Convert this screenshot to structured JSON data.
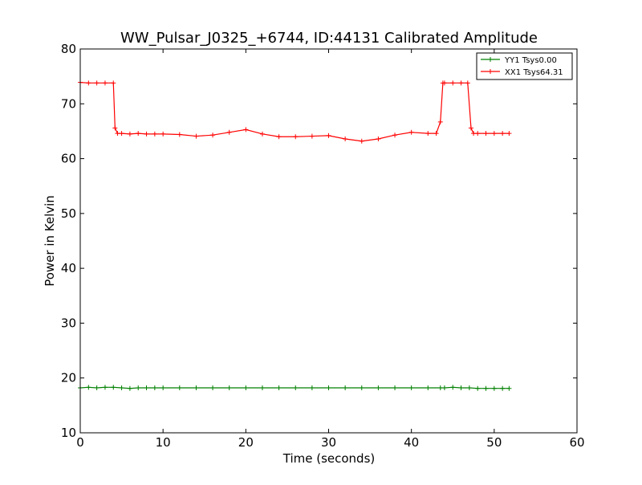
{
  "chart_data": {
    "type": "line",
    "title": "WW_Pulsar_J0325_+6744, ID:44131 Calibrated Amplitude",
    "xlabel": "Time (seconds)",
    "ylabel": "Power in Kelvin",
    "xlim": [
      0,
      60
    ],
    "ylim": [
      10,
      80
    ],
    "xticks": [
      0,
      10,
      20,
      30,
      40,
      50,
      60
    ],
    "yticks": [
      10,
      20,
      30,
      40,
      50,
      60,
      70,
      80
    ],
    "grid": false,
    "legend_position": "top-right",
    "marker": "+",
    "series": [
      {
        "name": "YY1 Tsys0.00",
        "color": "#008000",
        "x": [
          0.0,
          1.0,
          2.0,
          3.0,
          4.0,
          5.0,
          6.0,
          7.0,
          8.0,
          9.0,
          10.0,
          12.0,
          14.0,
          16.0,
          18.0,
          20.0,
          22.0,
          24.0,
          26.0,
          28.0,
          30.0,
          32.0,
          34.0,
          36.0,
          38.0,
          40.0,
          42.0,
          43.5,
          44.0,
          45.0,
          46.0,
          47.0,
          48.0,
          49.0,
          50.0,
          51.0,
          51.8
        ],
        "y": [
          18.2,
          18.3,
          18.2,
          18.3,
          18.3,
          18.2,
          18.1,
          18.2,
          18.2,
          18.2,
          18.2,
          18.2,
          18.2,
          18.2,
          18.2,
          18.2,
          18.2,
          18.2,
          18.2,
          18.2,
          18.2,
          18.2,
          18.2,
          18.2,
          18.2,
          18.2,
          18.2,
          18.2,
          18.2,
          18.3,
          18.2,
          18.2,
          18.1,
          18.1,
          18.1,
          18.1,
          18.1
        ]
      },
      {
        "name": "XX1 Tsys64.31",
        "color": "#ff0000",
        "x": [
          0.0,
          1.0,
          2.0,
          3.0,
          4.0,
          4.2,
          4.5,
          5.0,
          6.0,
          7.0,
          8.0,
          9.0,
          10.0,
          12.0,
          14.0,
          16.0,
          18.0,
          20.0,
          22.0,
          24.0,
          26.0,
          28.0,
          30.0,
          32.0,
          34.0,
          36.0,
          38.0,
          40.0,
          42.0,
          43.0,
          43.5,
          43.8,
          44.0,
          45.0,
          46.0,
          46.8,
          47.2,
          47.5,
          48.0,
          49.0,
          50.0,
          51.0,
          51.8
        ],
        "y": [
          73.9,
          73.8,
          73.8,
          73.8,
          73.8,
          65.6,
          64.6,
          64.6,
          64.5,
          64.6,
          64.5,
          64.5,
          64.5,
          64.4,
          64.1,
          64.3,
          64.8,
          65.3,
          64.5,
          64.0,
          64.0,
          64.1,
          64.2,
          63.6,
          63.2,
          63.6,
          64.3,
          64.8,
          64.6,
          64.6,
          66.7,
          73.8,
          73.8,
          73.8,
          73.8,
          73.8,
          65.6,
          64.6,
          64.6,
          64.6,
          64.6,
          64.6,
          64.6
        ]
      }
    ]
  }
}
